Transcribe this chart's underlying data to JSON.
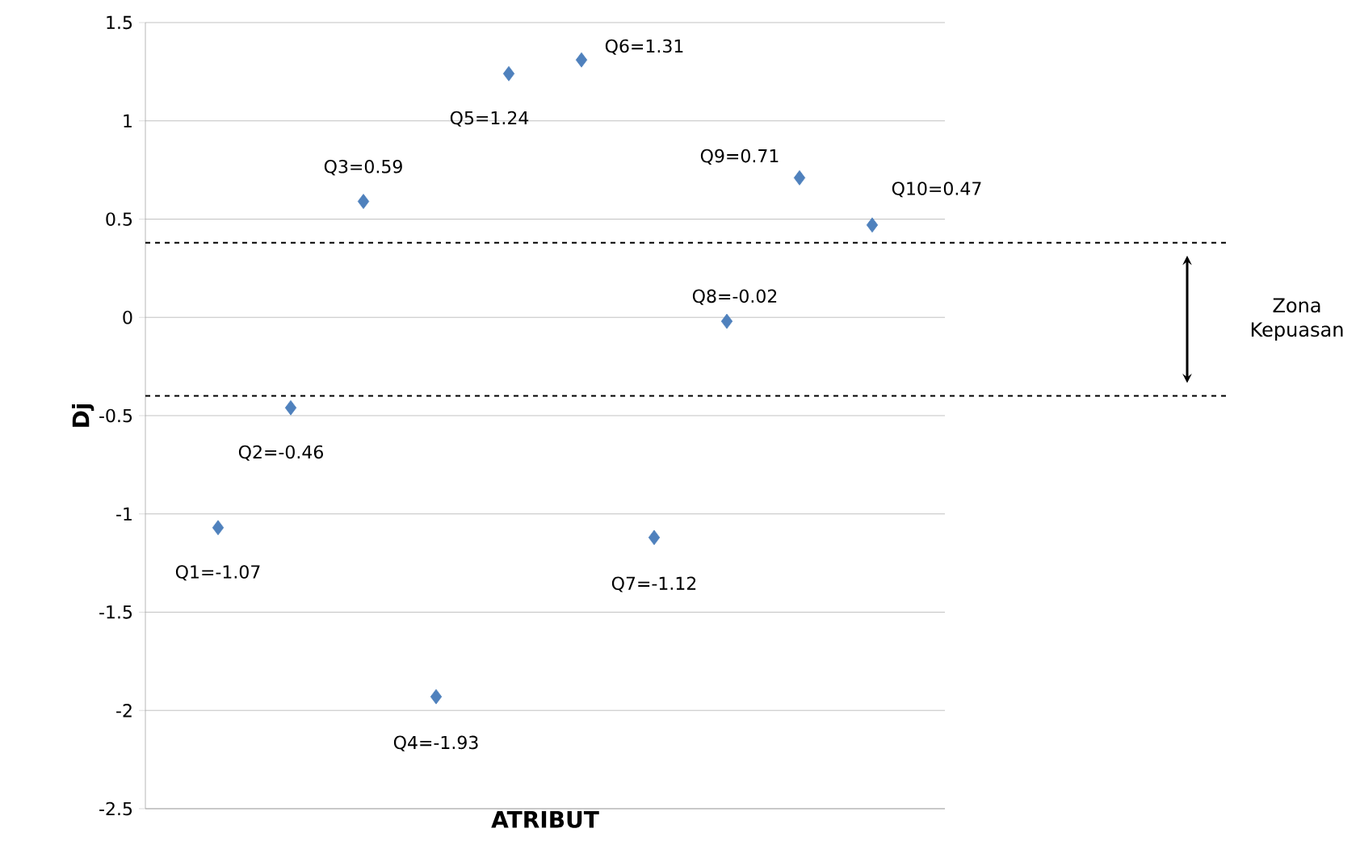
{
  "chart_data": {
    "type": "scatter",
    "xlabel": "ATRIBUT",
    "ylabel": "Dj",
    "categories": [
      null,
      null,
      null,
      null,
      null,
      null,
      null,
      null,
      null,
      null
    ],
    "values": [
      -1.07,
      -0.46,
      0.59,
      -1.93,
      1.24,
      1.31,
      -1.12,
      -0.02,
      0.71,
      0.47
    ],
    "value_labels": [
      "Q1=-1.07",
      "Q2=-0.46",
      "Q3=0.59",
      "Q4=-1.93",
      "Q5=1.24",
      "Q6=1.31",
      "Q7=-1.12",
      "Q8=-0.02",
      "Q9=0.71",
      "Q10=0.47"
    ],
    "color": "#4f81bd",
    "marker": "diamond",
    "ylim": [
      -2.5,
      1.5
    ],
    "yticks": [
      -2.5,
      -2,
      -1.5,
      -1,
      -0.5,
      0,
      0.5,
      1,
      1.5
    ],
    "grid": "y",
    "ref_lines": [
      {
        "axis": "y",
        "value": 0.38,
        "line_style": "dashed",
        "color": "#000000"
      },
      {
        "axis": "y",
        "value": -0.4,
        "line_style": "dashed",
        "color": "#000000"
      }
    ],
    "annotations": [
      "Zona Kepuasan"
    ]
  }
}
